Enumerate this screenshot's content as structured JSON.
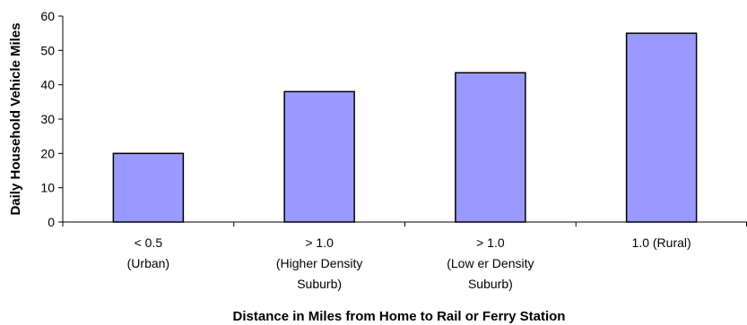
{
  "chart_data": {
    "type": "bar",
    "ylabel": "Daily Household Vehicle Miles",
    "xlabel": "Distance in Miles from Home to Rail or Ferry Station",
    "ylim": [
      0,
      60
    ],
    "yticks": [
      0,
      10,
      20,
      30,
      40,
      50,
      60
    ],
    "grid": false,
    "legend": "none",
    "bar_color": "#9999ff",
    "bar_edge_color": "#000000",
    "categories": [
      {
        "lines": [
          "< 0.5",
          "(Urban)"
        ]
      },
      {
        "lines": [
          "> 1.0",
          "(Higher Density",
          "Suburb)"
        ]
      },
      {
        "lines": [
          "> 1.0",
          "(Low er Density",
          "Suburb)"
        ]
      },
      {
        "lines": [
          "1.0          (Rural)"
        ]
      }
    ],
    "values": [
      20,
      38,
      43.5,
      55
    ]
  }
}
